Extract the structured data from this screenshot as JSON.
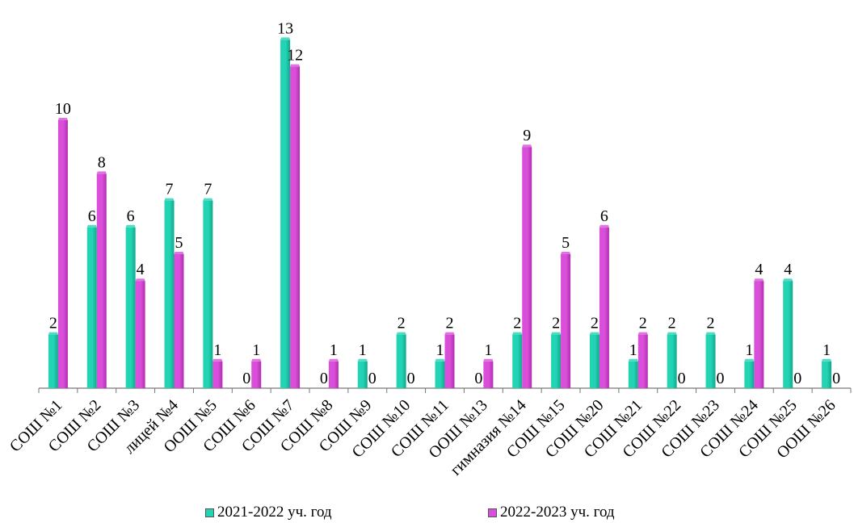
{
  "chart_data": {
    "type": "bar",
    "categories": [
      "СОШ №1",
      "СОШ №2",
      "СОШ №3",
      "лицей №4",
      "ООШ №5",
      "СОШ №6",
      "СОШ №7",
      "СОШ №8",
      "СОШ №9",
      "СОШ №10",
      "СОШ №11",
      "ООШ №13",
      "гимназия №14",
      "СОШ №15",
      "СОШ №20",
      "СОШ №21",
      "СОШ №22",
      "СОШ №23",
      "СОШ №24",
      "СОШ №25",
      "ООШ №26"
    ],
    "series": [
      {
        "name": "2021-2022 уч. год",
        "color": "#22d3b4",
        "values": [
          2,
          6,
          6,
          7,
          7,
          0,
          13,
          0,
          1,
          2,
          1,
          0,
          2,
          2,
          2,
          1,
          2,
          2,
          1,
          4,
          1
        ]
      },
      {
        "name": "2022-2023 уч. год",
        "color": "#d94fd9",
        "values": [
          10,
          8,
          4,
          5,
          1,
          1,
          12,
          1,
          0,
          0,
          2,
          1,
          9,
          5,
          6,
          2,
          0,
          0,
          4,
          0,
          0
        ]
      }
    ],
    "ylim": [
      0,
      13
    ],
    "grid": false,
    "legend_position": "bottom",
    "title": "",
    "xlabel": "",
    "ylabel": ""
  }
}
